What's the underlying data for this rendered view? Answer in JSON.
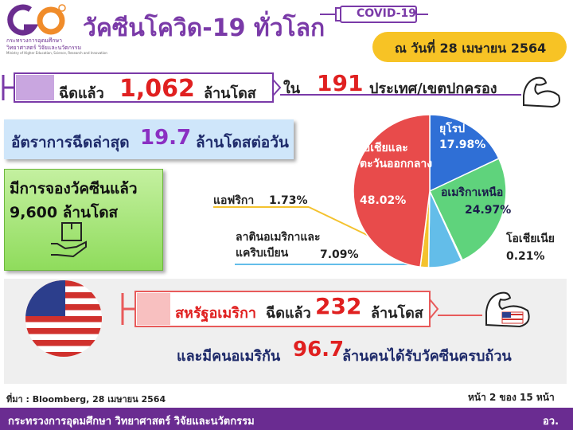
{
  "header": {
    "org_line1": "กระทรวงการอุดมศึกษา",
    "org_line2": "วิทยาศาสตร์ วิจัยและนวัตกรรม",
    "org_en": "Ministry of Higher Education, Science, Research and Innovation",
    "title": "วัคซีนโควิด-19 ทั่วโลก",
    "syringe_label": "COVID-19",
    "date": "ณ วันที่ 28 เมษายน 2564"
  },
  "doses": {
    "prefix": "ฉีดแล้ว",
    "number": "1,062",
    "unit": "ล้านโดส"
  },
  "countries": {
    "prefix": "ใน",
    "number": "191",
    "unit": "ประเทศ/เขตปกครอง"
  },
  "rate": {
    "prefix": "อัตราการฉีดล่าสุด",
    "number": "19.7",
    "unit": "ล้านโดสต่อวัน"
  },
  "reserved": {
    "line1": "มีการจองวัคซีนแล้ว",
    "line2": "9,600 ล้านโดส"
  },
  "chart_data": {
    "type": "pie",
    "categories": [
      "ยุโรป",
      "อเมริกาเหนือ",
      "โอเชียเนีย",
      "ลาตินอเมริกาและแคริบเบียน",
      "แอฟริกา",
      "เอเชียและตะวันออกกลาง"
    ],
    "values": [
      17.98,
      24.97,
      0.21,
      7.09,
      1.73,
      48.02
    ],
    "value_labels": [
      "17.98%",
      "24.97%",
      "0.21%",
      "7.09%",
      "1.73%",
      "48.02%"
    ],
    "colors": [
      "#2f6fd6",
      "#5fd37c",
      "#9b6fd6",
      "#63bde9",
      "#f4c22e",
      "#e84b4b"
    ]
  },
  "usa": {
    "country": "สหรัฐอเมริกา",
    "prefix": "ฉีดแล้ว",
    "number": "232",
    "unit": "ล้านโดส",
    "line2_prefix": "และมีคนอเมริกัน",
    "line2_number": "96.7",
    "line2_unit": "ล้านคนได้รับวัคซีนครบถ้วน"
  },
  "source": "ที่มา : Bloomberg, 28 เมษายน 2564",
  "page": "หน้า 2 ของ 15 หน้า",
  "footer": {
    "ministry": "กระทรวงการอุดมศึกษา วิทยาศาสตร์ วิจัยและนวัตกรรม",
    "abbr": "อว."
  }
}
